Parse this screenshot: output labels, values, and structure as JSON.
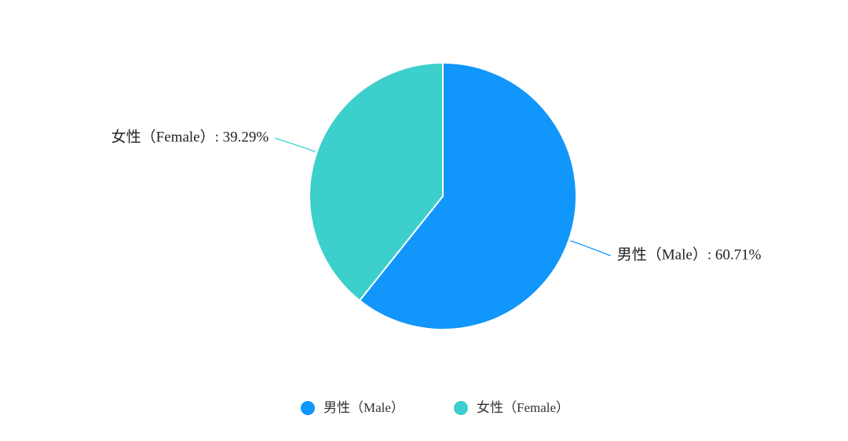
{
  "chart_data": {
    "type": "pie",
    "categories": [
      "男性（Male）",
      "女性（Female）"
    ],
    "values": [
      60.71,
      39.29
    ],
    "value_labels": [
      "男性（Male）: 60.71%",
      "女性（Female）: 39.29%"
    ],
    "colors": [
      "#1196fb",
      "#3ccfcb"
    ],
    "legend": "bottom"
  }
}
